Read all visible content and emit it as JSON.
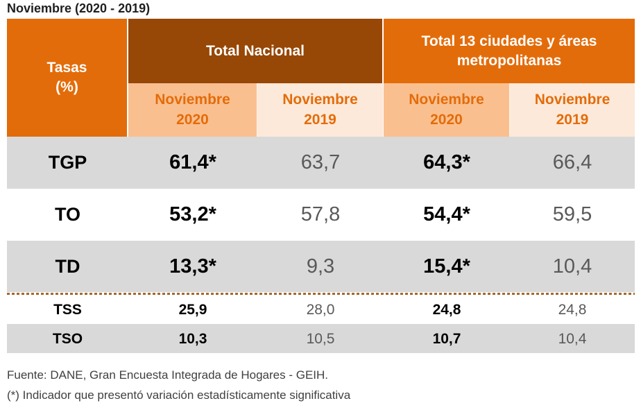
{
  "title": "Noviembre (2020 - 2019)",
  "table": {
    "corner_header": "Tasas\n(%)",
    "group_headers": [
      "Total Nacional",
      "Total 13 ciudades y áreas\nmetropolitanas"
    ],
    "sub_headers": [
      "Noviembre\n2020",
      "Noviembre\n2019",
      "Noviembre\n2020",
      "Noviembre\n2019"
    ],
    "rows": [
      {
        "label": "TGP",
        "nov2020_nacional": "61,4*",
        "nov2019_nacional": "63,7",
        "nov2020_ciudades": "64,3*",
        "nov2019_ciudades": "66,4"
      },
      {
        "label": "TO",
        "nov2020_nacional": "53,2*",
        "nov2019_nacional": "57,8",
        "nov2020_ciudades": "54,4*",
        "nov2019_ciudades": "59,5"
      },
      {
        "label": "TD",
        "nov2020_nacional": "13,3*",
        "nov2019_nacional": "9,3",
        "nov2020_ciudades": "15,4*",
        "nov2019_ciudades": "10,4"
      },
      {
        "label": "TSS",
        "nov2020_nacional": "25,9",
        "nov2019_nacional": "28,0",
        "nov2020_ciudades": "24,8",
        "nov2019_ciudades": "24,8"
      },
      {
        "label": "TSO",
        "nov2020_nacional": "10,3",
        "nov2019_nacional": "10,5",
        "nov2020_ciudades": "10,7",
        "nov2019_ciudades": "10,4"
      }
    ]
  },
  "footer": {
    "source": "Fuente: DANE, Gran Encuesta Integrada de Hogares - GEIH.",
    "note": "(*) Indicador que presentó variación estadísticamente significativa"
  },
  "colors": {
    "orange": "#E36C0A",
    "dark_orange": "#974706",
    "light_orange": "#FABF8F",
    "pale_orange": "#FDE9D9",
    "row_gray": "#D9D9D9",
    "value_gray": "#595959",
    "dashed_separator": "#A5682E"
  },
  "chart_data": {
    "type": "table",
    "title": "Noviembre (2020 - 2019)",
    "column_groups": [
      "Total Nacional",
      "Total 13 ciudades y áreas metropolitanas"
    ],
    "columns": [
      "Tasas (%)",
      "Total Nacional Noviembre 2020",
      "Total Nacional Noviembre 2019",
      "Total 13 ciudades Noviembre 2020",
      "Total 13 ciudades Noviembre 2019"
    ],
    "rows": [
      {
        "tasa": "TGP",
        "nacional_nov2020": 61.4,
        "nacional_nov2019": 63.7,
        "ciudades_nov2020": 64.3,
        "ciudades_nov2019": 66.4,
        "variacion_significativa": true
      },
      {
        "tasa": "TO",
        "nacional_nov2020": 53.2,
        "nacional_nov2019": 57.8,
        "ciudades_nov2020": 54.4,
        "ciudades_nov2019": 59.5,
        "variacion_significativa": true
      },
      {
        "tasa": "TD",
        "nacional_nov2020": 13.3,
        "nacional_nov2019": 9.3,
        "ciudades_nov2020": 15.4,
        "ciudades_nov2019": 10.4,
        "variacion_significativa": true
      },
      {
        "tasa": "TSS",
        "nacional_nov2020": 25.9,
        "nacional_nov2019": 28.0,
        "ciudades_nov2020": 24.8,
        "ciudades_nov2019": 24.8,
        "variacion_significativa": false
      },
      {
        "tasa": "TSO",
        "nacional_nov2020": 10.3,
        "nacional_nov2019": 10.5,
        "ciudades_nov2020": 10.7,
        "ciudades_nov2019": 10.4,
        "variacion_significativa": false
      }
    ],
    "source": "Fuente: DANE, Gran Encuesta Integrada de Hogares - GEIH.",
    "note": "(*) Indicador que presentó variación estadísticamente significativa"
  }
}
